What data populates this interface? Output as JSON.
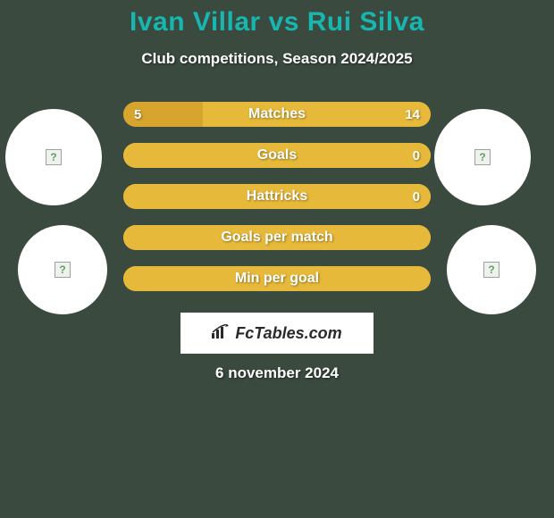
{
  "title": "Ivan Villar vs Rui Silva",
  "subtitle": "Club competitions, Season 2024/2025",
  "date": "6 november 2024",
  "site": "FcTables.com",
  "colors": {
    "background": "#3a4a3f",
    "title": "#17b6b0",
    "text": "#ffffff",
    "circle_bg": "#ffffff",
    "badge_bg": "#ffffff",
    "badge_text": "#2a2a2a",
    "bar_left_fill": "#d7a52e",
    "bar_right_fill": "#e7b93a",
    "bar_default": "#e7b93a"
  },
  "typography": {
    "title_fontsize": 30,
    "subtitle_fontsize": 17,
    "bar_label_fontsize": 16,
    "bar_value_fontsize": 15,
    "date_fontsize": 17,
    "site_fontsize": 18
  },
  "bars": [
    {
      "label": "Matches",
      "left": "5",
      "right": "14",
      "left_pct": 26,
      "right_pct": 74
    },
    {
      "label": "Goals",
      "left": "",
      "right": "0",
      "left_pct": 0,
      "right_pct": 100
    },
    {
      "label": "Hattricks",
      "left": "",
      "right": "0",
      "left_pct": 0,
      "right_pct": 100
    },
    {
      "label": "Goals per match",
      "left": "",
      "right": "",
      "left_pct": 0,
      "right_pct": 100
    },
    {
      "label": "Min per goal",
      "left": "",
      "right": "",
      "left_pct": 0,
      "right_pct": 100
    }
  ],
  "circles": {
    "left_top": {
      "placeholder": "?"
    },
    "right_top": {
      "placeholder": "?"
    },
    "left_bot": {
      "placeholder": "?"
    },
    "right_bot": {
      "placeholder": "?"
    }
  }
}
